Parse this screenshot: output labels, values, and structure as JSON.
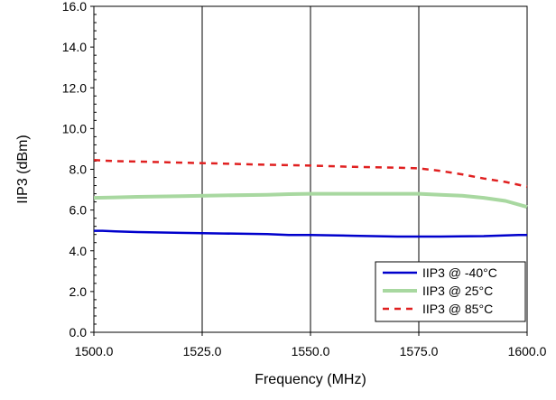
{
  "chart_data": {
    "type": "line",
    "xlabel": "Frequency (MHz)",
    "ylabel": "IIP3 (dBm)",
    "xlim": [
      1500,
      1600
    ],
    "ylim": [
      0,
      16
    ],
    "x_ticks": [
      1500,
      1525,
      1550,
      1575,
      1600
    ],
    "x_tick_labels": [
      "1500.0",
      "1525.0",
      "1550.0",
      "1575.0",
      "1600.0"
    ],
    "y_ticks": [
      0,
      2,
      4,
      6,
      8,
      10,
      12,
      14,
      16
    ],
    "y_tick_labels": [
      "0.0",
      "2.0",
      "4.0",
      "6.0",
      "8.0",
      "10.0",
      "12.0",
      "14.0",
      "16.0"
    ],
    "grid": "vertical major gridlines at x ticks",
    "legend_position": "bottom-right",
    "series": [
      {
        "name": "IIP3 @ -40°C",
        "color": "#0000cc",
        "style": "solid",
        "x": [
          1500,
          1502,
          1505,
          1510,
          1520,
          1530,
          1540,
          1545,
          1550,
          1560,
          1570,
          1580,
          1590,
          1598,
          1600
        ],
        "y": [
          4.98,
          4.98,
          4.95,
          4.92,
          4.88,
          4.85,
          4.82,
          4.78,
          4.78,
          4.74,
          4.7,
          4.7,
          4.72,
          4.78,
          4.78
        ]
      },
      {
        "name": "IIP3 @ 25°C",
        "color": "#a8d8a0",
        "style": "solid",
        "x": [
          1500,
          1505,
          1510,
          1520,
          1530,
          1540,
          1545,
          1550,
          1560,
          1570,
          1575,
          1580,
          1585,
          1590,
          1595,
          1600
        ],
        "y": [
          6.6,
          6.62,
          6.65,
          6.68,
          6.72,
          6.75,
          6.78,
          6.8,
          6.8,
          6.8,
          6.8,
          6.75,
          6.7,
          6.6,
          6.45,
          6.15
        ]
      },
      {
        "name": "IIP3 @ 85°C",
        "color": "#e02020",
        "style": "dashed",
        "x": [
          1500,
          1505,
          1510,
          1520,
          1530,
          1540,
          1550,
          1560,
          1570,
          1575,
          1580,
          1585,
          1590,
          1595,
          1600
        ],
        "y": [
          8.45,
          8.4,
          8.38,
          8.33,
          8.28,
          8.22,
          8.18,
          8.12,
          8.08,
          8.05,
          7.92,
          7.75,
          7.55,
          7.38,
          7.15
        ]
      }
    ]
  }
}
